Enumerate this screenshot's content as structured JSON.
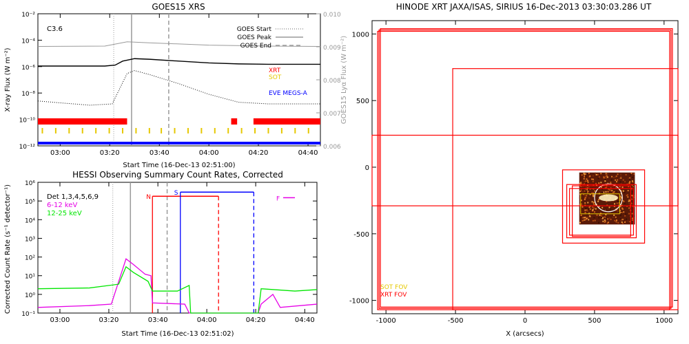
{
  "chart_data": [
    {
      "type": "line",
      "title": "GOES15 XRS",
      "xlabel": "Start Time (16-Dec-13 02:51:00)",
      "ylabel": "X-ray Flux (W m⁻²)",
      "ylabel_right": "GOES15 Lyα Flux (W m⁻²)",
      "xlim": [
        2.85,
        4.75
      ],
      "x_ticks": [
        {
          "x": 3.0,
          "label": "03:00"
        },
        {
          "x": 3.333,
          "label": "03:20"
        },
        {
          "x": 3.667,
          "label": "03:40"
        },
        {
          "x": 4.0,
          "label": "04:00"
        },
        {
          "x": 4.333,
          "label": "04:20"
        },
        {
          "x": 4.667,
          "label": "04:40"
        }
      ],
      "y_scale": "log",
      "ylim": [
        1e-12,
        0.01
      ],
      "y_ticks": [
        {
          "y": 0.01,
          "label": "10⁻²"
        },
        {
          "y": 0.0001,
          "label": "10⁻⁴"
        },
        {
          "y": 1e-06,
          "label": "10⁻⁶"
        },
        {
          "y": 1e-08,
          "label": "10⁻⁸"
        },
        {
          "y": 1e-10,
          "label": "10⁻¹⁰"
        },
        {
          "y": 1e-12,
          "label": "10⁻¹²"
        }
      ],
      "y2lim": [
        0.006,
        0.01
      ],
      "y2_ticks": [
        {
          "y": 0.01,
          "label": "0.010"
        },
        {
          "y": 0.009,
          "label": "0.009"
        },
        {
          "y": 0.008,
          "label": "0.008"
        },
        {
          "y": 0.007,
          "label": "0.007"
        },
        {
          "y": 0.006,
          "label": "0.006"
        }
      ],
      "class_label": "C3.6",
      "legend": [
        {
          "label": "GOES Start",
          "style": "dotted",
          "color": "#999999"
        },
        {
          "label": "GOES Peak",
          "style": "solid",
          "color": "#999999"
        },
        {
          "label": "GOES End",
          "style": "dashed",
          "color": "#999999"
        }
      ],
      "markers": {
        "start": 3.36,
        "peak": 3.48,
        "end": 3.73
      },
      "series": [
        {
          "name": "long",
          "color": "#000000",
          "points": [
            [
              2.85,
              1.1e-06
            ],
            [
              3.3,
              1.1e-06
            ],
            [
              3.37,
              1.3e-06
            ],
            [
              3.42,
              2.6e-06
            ],
            [
              3.5,
              4e-06
            ],
            [
              3.6,
              3.6e-06
            ],
            [
              3.8,
              2.6e-06
            ],
            [
              4.0,
              1.9e-06
            ],
            [
              4.2,
              1.6e-06
            ],
            [
              4.4,
              1.5e-06
            ],
            [
              4.75,
              1.5e-06
            ]
          ]
        },
        {
          "name": "short",
          "color": "#000000",
          "style": "dotted",
          "points": [
            [
              2.85,
              2.5e-09
            ],
            [
              3.0,
              1.8e-09
            ],
            [
              3.2,
              1.2e-09
            ],
            [
              3.35,
              1.5e-09
            ],
            [
              3.45,
              3e-07
            ],
            [
              3.5,
              5e-07
            ],
            [
              3.6,
              2.5e-07
            ],
            [
              3.8,
              5e-08
            ],
            [
              4.0,
              8e-09
            ],
            [
              4.2,
              2e-09
            ],
            [
              4.4,
              1.5e-09
            ],
            [
              4.75,
              1.5e-09
            ]
          ]
        },
        {
          "name": "lya",
          "color": "#999999",
          "points": [
            [
              2.85,
              0.00901
            ],
            [
              3.3,
              0.00902
            ],
            [
              3.45,
              0.00915
            ],
            [
              3.6,
              0.00912
            ],
            [
              4.0,
              0.00905
            ],
            [
              4.4,
              0.00902
            ],
            [
              4.75,
              0.00901
            ]
          ]
        }
      ],
      "instruments": [
        {
          "name": "XRT",
          "color": "#ff0000"
        },
        {
          "name": "SOT",
          "color": "#e6c800"
        },
        {
          "name": "EVE MEGS-A",
          "color": "#0000ff"
        }
      ],
      "xrt_bars": [
        [
          2.85,
          3.45
        ],
        [
          4.15,
          4.19
        ],
        [
          4.3,
          4.75
        ]
      ],
      "sot_ticks": [
        2.88,
        2.97,
        3.06,
        3.15,
        3.24,
        3.33,
        3.42,
        3.51,
        3.6,
        3.68,
        3.77,
        3.86,
        3.95,
        4.04,
        4.13,
        4.22,
        4.31,
        4.4,
        4.49,
        4.58,
        4.67
      ],
      "eve_bars": [
        [
          2.85,
          4.75
        ]
      ]
    },
    {
      "type": "line",
      "title": "HESSI Observing Summary Count Rates, Corrected",
      "xlabel": "Start Time (16-Dec-13 02:51:02)",
      "ylabel": "Corrected Count Rate (s⁻¹ detector⁻¹)",
      "xlim": [
        2.85,
        4.75
      ],
      "x_ticks": [
        {
          "x": 3.0,
          "label": "03:00"
        },
        {
          "x": 3.333,
          "label": "03:20"
        },
        {
          "x": 3.667,
          "label": "03:40"
        },
        {
          "x": 4.0,
          "label": "04:00"
        },
        {
          "x": 4.333,
          "label": "04:20"
        },
        {
          "x": 4.667,
          "label": "04:40"
        }
      ],
      "y_scale": "log",
      "ylim": [
        0.1,
        1000000.0
      ],
      "y_ticks": [
        {
          "y": 1000000.0,
          "label": "10⁶"
        },
        {
          "y": 100000.0,
          "label": "10⁵"
        },
        {
          "y": 10000.0,
          "label": "10⁴"
        },
        {
          "y": 1000.0,
          "label": "10³"
        },
        {
          "y": 100.0,
          "label": "10²"
        },
        {
          "y": 10.0,
          "label": "10¹"
        },
        {
          "y": 1,
          "label": "10⁰"
        },
        {
          "y": 0.1,
          "label": "10⁻¹"
        }
      ],
      "detectors": "Det 1,3,4,5,6,9",
      "markers": {
        "start": 3.36,
        "peak": 3.48,
        "end": 3.73
      },
      "series": [
        {
          "name": "6-12 keV",
          "color": "#e600e6",
          "points": [
            [
              2.85,
              0.2
            ],
            [
              3.2,
              0.25
            ],
            [
              3.35,
              0.3
            ],
            [
              3.45,
              80
            ],
            [
              3.5,
              40
            ],
            [
              3.58,
              12
            ],
            [
              3.62,
              10
            ],
            [
              3.63,
              0.35
            ],
            [
              3.85,
              0.3
            ],
            [
              3.88,
              0.1
            ],
            [
              4.35,
              0.1
            ],
            [
              4.37,
              0.3
            ],
            [
              4.45,
              1.0
            ],
            [
              4.5,
              0.2
            ],
            [
              4.75,
              0.3
            ]
          ]
        },
        {
          "name": "12-25 keV",
          "color": "#00e600",
          "points": [
            [
              2.85,
              2.0
            ],
            [
              3.2,
              2.2
            ],
            [
              3.4,
              3.5
            ],
            [
              3.45,
              30
            ],
            [
              3.5,
              15
            ],
            [
              3.6,
              5
            ],
            [
              3.63,
              1.5
            ],
            [
              3.8,
              1.5
            ],
            [
              3.88,
              3.0
            ],
            [
              3.89,
              0.1
            ],
            [
              4.35,
              0.1
            ],
            [
              4.37,
              2.0
            ],
            [
              4.6,
              1.5
            ],
            [
              4.75,
              1.8
            ]
          ]
        }
      ],
      "attenuator_intervals": [
        {
          "label": "N",
          "color": "#ff0000",
          "start": 3.63,
          "end": 4.08,
          "level": 180000.0
        },
        {
          "label": "S",
          "color": "#0000ff",
          "start": 3.82,
          "end": 4.32,
          "level": 300000.0
        }
      ],
      "flag_label": {
        "label": "F",
        "color": "#e600e6",
        "start": 4.52,
        "end": 4.6,
        "level": 150000.0
      }
    },
    {
      "type": "scatter",
      "title": "HINODE XRT JAXA/ISAS, SIRIUS 16-Dec-2013 03:30:03.286 UT",
      "xlabel": "X (arcsecs)",
      "ylabel": "",
      "xlim": [
        -1100,
        1100
      ],
      "ylim": [
        -1100,
        1100
      ],
      "x_ticks": [
        -1000,
        -500,
        0,
        500,
        1000
      ],
      "y_ticks": [
        1000,
        500,
        0,
        -500,
        -1000
      ],
      "fov_legend": [
        {
          "label": "SOT FOV",
          "color": "#e6c800"
        },
        {
          "label": "XRT FOV",
          "color": "#ff0000"
        }
      ],
      "xrt_fov_boxes": [
        [
          -1050,
          -1060,
          1050,
          1030
        ],
        [
          -1060,
          -1070,
          1040,
          1020
        ],
        [
          -1040,
          -1050,
          1060,
          1040
        ],
        [
          -520,
          -1070,
          1100,
          740
        ],
        [
          -1100,
          -290,
          1100,
          240
        ],
        [
          270,
          -570,
          860,
          -20
        ],
        [
          300,
          -530,
          800,
          -130
        ],
        [
          320,
          -510,
          780,
          -160
        ],
        [
          340,
          -520,
          760,
          -140
        ]
      ],
      "sot_fov_boxes": [
        [
          400,
          -350,
          680,
          -200
        ]
      ],
      "image_box": [
        390,
        -430,
        790,
        -40
      ],
      "limb_radius": 975,
      "circle": {
        "cx": 600,
        "cy": -230,
        "r": 100
      }
    }
  ]
}
